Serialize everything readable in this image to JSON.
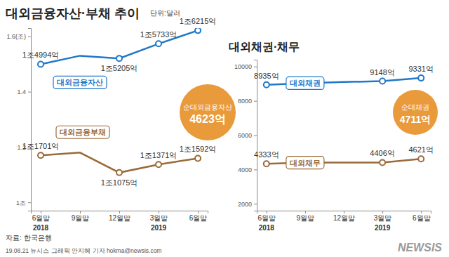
{
  "chart_data": [
    {
      "type": "line",
      "title": "대외금융자산·부채 추이",
      "subtitle": "단위:달러",
      "categories": [
        "6월말",
        "9월말",
        "12월말",
        "3월말",
        "6월말"
      ],
      "category_years": [
        "2018",
        null,
        null,
        "2019",
        null
      ],
      "ylim": [
        0.97,
        1.63
      ],
      "yticks": [
        {
          "value": 1.0,
          "label": "1조"
        },
        1.2,
        1.4,
        {
          "value": 1.6,
          "label": "1.6(조)"
        }
      ],
      "data_labels": true,
      "grid": false,
      "series": [
        {
          "name": "대외금융자산",
          "color": "#1f78c8",
          "marker": "circle",
          "values": [
            1.4994,
            1.53,
            1.5205,
            1.5733,
            1.6215
          ],
          "value_labels": [
            "1조4994억",
            null,
            "1조5205억",
            "1조5733억",
            "1조6215억"
          ]
        },
        {
          "name": "대외금융부채",
          "color": "#9a6a3a",
          "marker": "circle",
          "values": [
            1.1701,
            1.18,
            1.1075,
            1.1371,
            1.1592
          ],
          "value_labels": [
            "1조1701억",
            null,
            "1조1075억",
            "1조1371억",
            "1조1592억"
          ]
        }
      ],
      "annotations": [
        "순대외금융자산",
        "4623억"
      ]
    },
    {
      "type": "line",
      "title": "대외채권·채무",
      "categories": [
        "6월말",
        "9월말",
        "12월말",
        "3월말",
        "6월말"
      ],
      "category_years": [
        "2018",
        null,
        null,
        "2019",
        null
      ],
      "ylim": [
        1600,
        10400
      ],
      "yticks": [
        2000,
        4000,
        6000,
        8000,
        10000
      ],
      "data_labels": true,
      "grid": false,
      "series": [
        {
          "name": "대외채권",
          "color": "#1f78c8",
          "marker": "circle",
          "values": [
            8935,
            9030,
            9100,
            9148,
            9331
          ],
          "value_labels": [
            "8935억",
            null,
            null,
            "9148억",
            "9331억"
          ]
        },
        {
          "name": "대외채무",
          "color": "#9a6a3a",
          "marker": "circle",
          "values": [
            4333,
            4400,
            4400,
            4406,
            4621
          ],
          "value_labels": [
            "4333억",
            null,
            null,
            "4406억",
            "4621억"
          ]
        }
      ],
      "annotations": [
        "순대채권",
        "4711억"
      ]
    }
  ],
  "source": "자료: 한국은행",
  "credit": "19.08.21 뉴시스 그래픽 안지혜 기자 hokma@newsis.com",
  "watermark": "NEWSIS"
}
